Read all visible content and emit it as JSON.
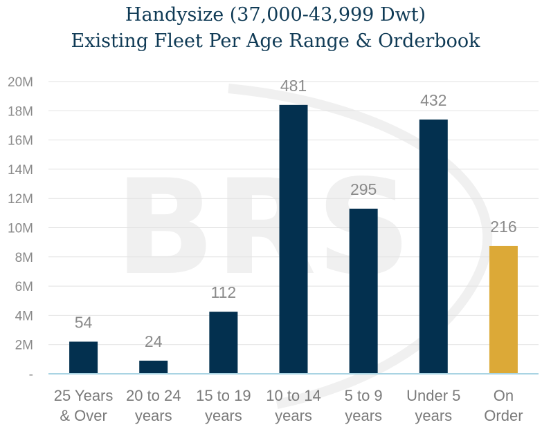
{
  "title_line1": "Handysize (37,000-43,999 Dwt)",
  "title_line2": "Existing Fleet Per Age Range & Orderbook",
  "watermark": "BRS",
  "colors": {
    "fleet_bar": "#03304f",
    "orderbook_bar": "#dca937",
    "axis_line": "#a9d4e3",
    "gridline": "#e2e2e2",
    "text": "#8a8a8a"
  },
  "chart_data": {
    "type": "bar",
    "title": "Handysize (37,000-43,999 Dwt) Existing Fleet Per Age Range & Orderbook",
    "categories": [
      [
        "25 Years",
        "& Over"
      ],
      [
        "20 to 24",
        "years"
      ],
      [
        "15 to 19",
        "years"
      ],
      [
        "10 to 14",
        "years"
      ],
      [
        "5 to 9",
        "years"
      ],
      [
        "Under 5",
        "years"
      ],
      [
        "On",
        "Order"
      ]
    ],
    "values": [
      2200000,
      900000,
      4250000,
      18400000,
      11300000,
      17400000,
      8750000
    ],
    "data_labels": [
      "54",
      "24",
      "112",
      "481",
      "295",
      "432",
      "216"
    ],
    "highlight_index": 6,
    "ylim": [
      0,
      20000000
    ],
    "y_ticks": [
      {
        "value": 0,
        "label": "-"
      },
      {
        "value": 2000000,
        "label": "2M"
      },
      {
        "value": 4000000,
        "label": "4M"
      },
      {
        "value": 6000000,
        "label": "6M"
      },
      {
        "value": 8000000,
        "label": "8M"
      },
      {
        "value": 10000000,
        "label": "10M"
      },
      {
        "value": 12000000,
        "label": "12M"
      },
      {
        "value": 14000000,
        "label": "14M"
      },
      {
        "value": 16000000,
        "label": "16M"
      },
      {
        "value": 18000000,
        "label": "18M"
      },
      {
        "value": 20000000,
        "label": "20M"
      }
    ],
    "grid": true,
    "legend": "none"
  }
}
